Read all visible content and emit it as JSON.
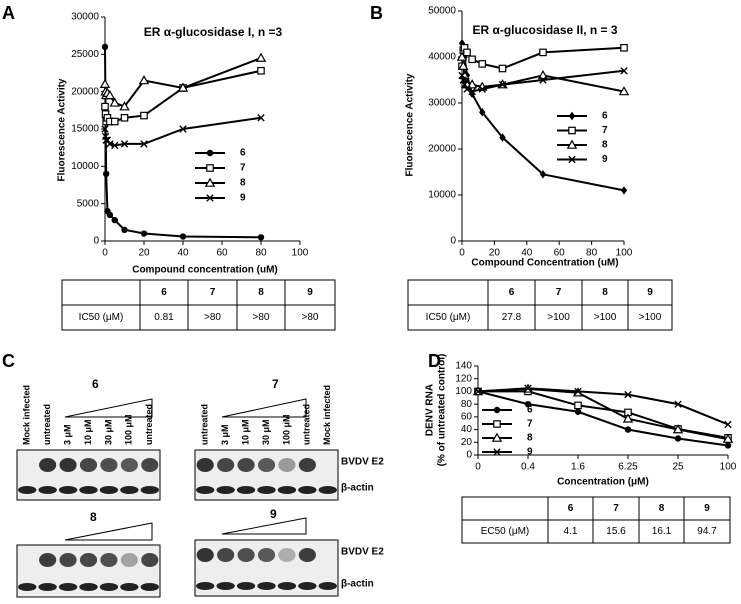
{
  "panel_labels": [
    "A",
    "B",
    "C",
    "D"
  ],
  "chart_data": [
    {
      "type": "line",
      "title": "ER α-glucosidase I, n =3",
      "xlabel": "Compound concentration (uM)",
      "ylabel": "Fluorescence Activity",
      "x": [
        0,
        0.3,
        0.6,
        1.25,
        2.5,
        5,
        10,
        20,
        40,
        80
      ],
      "xlim": [
        0,
        100
      ],
      "xticks": [
        0,
        20,
        40,
        60,
        80,
        100
      ],
      "ylim": [
        0,
        30000
      ],
      "yticks": [
        0,
        5000,
        10000,
        15000,
        20000,
        25000,
        30000
      ],
      "series": [
        {
          "name": "6",
          "color": "#000000",
          "marker": "circle",
          "values": [
            26000,
            16500,
            9000,
            4000,
            3500,
            2800,
            1500,
            1000,
            600,
            500
          ]
        },
        {
          "name": "7",
          "color": "#000000",
          "marker": "square",
          "values": [
            18000,
            17000,
            16000,
            16500,
            16000,
            16000,
            16500,
            16800,
            20500,
            22800
          ]
        },
        {
          "name": "8",
          "color": "#000000",
          "marker": "triangle",
          "values": [
            21000,
            20000,
            19500,
            19800,
            19500,
            18500,
            18000,
            21500,
            20500,
            24500
          ]
        },
        {
          "name": "9",
          "color": "#000000",
          "marker": "x",
          "values": [
            15000,
            14000,
            13500,
            13500,
            13000,
            12800,
            13000,
            13000,
            15000,
            16500
          ]
        }
      ]
    },
    {
      "type": "line",
      "title": "ER α-glucosidase II, n = 3",
      "xlabel": "Compound Concentration (uM)",
      "ylabel": "Fluorescence Activity",
      "x": [
        0,
        0.8,
        1.6,
        3.1,
        6.25,
        12.5,
        25,
        50,
        100
      ],
      "xlim": [
        0,
        100
      ],
      "xticks": [
        0,
        20,
        40,
        60,
        80,
        100
      ],
      "ylim": [
        0,
        50000
      ],
      "yticks": [
        0,
        10000,
        20000,
        30000,
        40000,
        50000
      ],
      "series": [
        {
          "name": "6",
          "color": "#000000",
          "marker": "diamond",
          "values": [
            43000,
            42000,
            40000,
            36000,
            32000,
            28000,
            22500,
            14500,
            11000
          ]
        },
        {
          "name": "7",
          "color": "#000000",
          "marker": "square",
          "values": [
            38000,
            41500,
            42000,
            41000,
            39500,
            38500,
            37500,
            41000,
            42000
          ]
        },
        {
          "name": "8",
          "color": "#000000",
          "marker": "triangle",
          "values": [
            40000,
            38000,
            36000,
            34000,
            34000,
            33500,
            34000,
            36000,
            32500
          ]
        },
        {
          "name": "9",
          "color": "#000000",
          "marker": "x",
          "values": [
            36000,
            35000,
            34000,
            33000,
            32500,
            33000,
            34000,
            35000,
            37000
          ]
        }
      ]
    },
    {
      "type": "line",
      "xlabel": "Concentration (μM)",
      "ylabel": [
        "DENV RNA",
        "(% of untreated control)"
      ],
      "categories": [
        "0",
        "0.4",
        "1.6",
        "6.25",
        "25",
        "100"
      ],
      "ylim": [
        0,
        140
      ],
      "yticks": [
        0,
        20,
        40,
        60,
        80,
        100,
        120,
        140
      ],
      "series": [
        {
          "name": "6",
          "color": "#000000",
          "marker": "circle",
          "values": [
            100,
            80,
            68,
            40,
            26,
            15
          ]
        },
        {
          "name": "7",
          "color": "#000000",
          "marker": "square",
          "values": [
            100,
            100,
            78,
            67,
            41,
            27
          ]
        },
        {
          "name": "8",
          "color": "#000000",
          "marker": "triangle",
          "values": [
            100,
            104,
            98,
            57,
            40,
            25
          ]
        },
        {
          "name": "9",
          "color": "#000000",
          "marker": "x",
          "values": [
            100,
            105,
            100,
            95,
            80,
            48
          ]
        }
      ]
    }
  ],
  "tables": [
    {
      "columns": [
        "6",
        "7",
        "8",
        "9"
      ],
      "row_label": "IC50 (μM)",
      "values": [
        "0.81",
        ">80",
        ">80",
        ">80"
      ]
    },
    {
      "columns": [
        "6",
        "7",
        "8",
        "9"
      ],
      "row_label": "IC50 (μM)",
      "values": [
        "27.8",
        ">100",
        ">100",
        ">100"
      ]
    },
    {
      "columns": [
        "6",
        "7",
        "8",
        "9"
      ],
      "row_label": "EC50 (μM)",
      "values": [
        "4.1",
        "15.6",
        "16.1",
        "94.7"
      ]
    }
  ],
  "blot_labels": [
    "BVDV E2",
    "β-actin"
  ],
  "blots": [
    {
      "compound": "6",
      "lanes": [
        "Mock infected",
        "untreated",
        "3 μM",
        "10 μM",
        "30 μM",
        "100 μM",
        "untreated"
      ]
    },
    {
      "compound": "7",
      "lanes": [
        "untreated",
        "3 μM",
        "10 μM",
        "30 μM",
        "100 μM",
        "untreated",
        "Mock infected"
      ]
    },
    {
      "compound": "8"
    },
    {
      "compound": "9"
    }
  ]
}
